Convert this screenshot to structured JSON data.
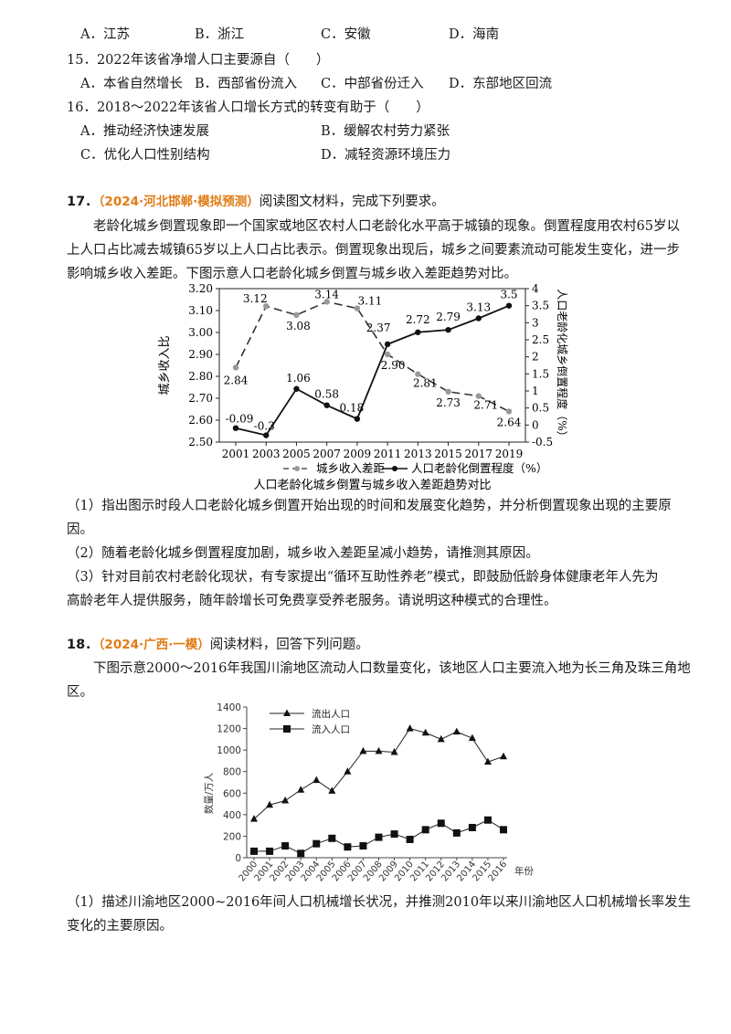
{
  "q14": {
    "options": [
      "A．江苏",
      "B．浙江",
      "C．安徽",
      "D．海南"
    ]
  },
  "q15": {
    "stem": "15．2022年该省净增人口主要源自（　　）",
    "options": [
      "A．本省自然增长",
      "B．西部省份流入",
      "C．中部省份迁入",
      "D．东部地区回流"
    ]
  },
  "q16": {
    "stem": "16．2018～2022年该省人口增长方式的转变有助于（　　）",
    "options": [
      "A．推动经济快速发展",
      "B．缓解农村劳力紧张",
      "C．优化人口性别结构",
      "D．减轻资源环境压力"
    ]
  },
  "q17": {
    "number": "17．",
    "source": "（2024·河北邯郸·模拟预测）",
    "instruction": "阅读图文材料，完成下列要求。",
    "para1": "老龄化城乡倒置现象即一个国家或地区农村人口老龄化水平高于城镇的现象。倒置程度用农村65岁以",
    "para2": "上人口占比减去城镇65岁以上人口占比表示。倒置现象出现后，城乡之间要素流动可能发生变化，进一步",
    "para3": "影响城乡收入差距。下图示意人口老龄化城乡倒置与城乡收入差距趋势对比。",
    "sub1a": "（1）指出图示时段人口老龄化城乡倒置开始出现的时间和发展变化趋势，并分析倒置现象出现的主要原",
    "sub1b": "因。",
    "sub2": "（2）随着老龄化城乡倒置程度加剧，城乡收入差距呈减小趋势，请推测其原因。",
    "sub3a": "（3）针对目前农村老龄化现状，有专家提出“循环互助性养老”模式，即鼓励低龄身体健康老年人先为",
    "sub3b": "高龄老年人提供服务，随年龄增长可免费享受养老服务。请说明这种模式的合理性。"
  },
  "q18": {
    "number": "18．",
    "source": "（2024·广西·一模）",
    "instruction": "阅读材料，回答下列问题。",
    "para1": "下图示意2000～2016年我国川渝地区流动人口数量变化，该地区人口主要流入地为长三角及珠三角地",
    "para2": "区。",
    "sub1a": "（1）描述川渝地区2000~2016年间人口机械增长状况，并推测2010年以来川渝地区人口机械增长率发生",
    "sub1b": "变化的主要原因。"
  },
  "chart_data": [
    {
      "type": "line",
      "title": "人口老龄化城乡倒置与城乡收入差距趋势对比",
      "x": [
        "2001",
        "2003",
        "2005",
        "2007",
        "2009",
        "2011",
        "2013",
        "2015",
        "2017",
        "2019"
      ],
      "ylabel": "城乡收入比",
      "y2label": "人口老龄化城乡倒置程度（%）",
      "ylim": [
        2.5,
        3.2
      ],
      "yticks": [
        "2.50",
        "2.60",
        "2.70",
        "2.80",
        "2.90",
        "3.00",
        "3.10",
        "3.20"
      ],
      "y2lim": [
        -0.5,
        4
      ],
      "y2ticks": [
        "-0.5",
        "0",
        "0.5",
        "1",
        "1.5",
        "2",
        "2.5",
        "3",
        "3.5",
        "4"
      ],
      "series": [
        {
          "name": "城乡收入差距",
          "axis": "left",
          "style": "dashed",
          "color": "#888888",
          "values": [
            2.84,
            3.12,
            3.08,
            3.14,
            3.11,
            2.9,
            2.81,
            2.73,
            2.71,
            2.64
          ],
          "labels": [
            "2.84",
            "3.12",
            "3.08",
            "3.14",
            "3.11",
            "2.90",
            "2.81",
            "2.73",
            "2.71",
            "2.64"
          ]
        },
        {
          "name": "人口老龄化倒置程度（%）",
          "axis": "right",
          "style": "solid",
          "color": "#111111",
          "values": [
            -0.09,
            -0.3,
            1.06,
            0.58,
            0.18,
            2.37,
            2.72,
            2.79,
            3.13,
            3.5
          ],
          "labels": [
            "-0.09",
            "-0.3",
            "1.06",
            "0.58",
            "0.18",
            "2.37",
            "2.72",
            "2.79",
            "3.13",
            "3.5"
          ]
        }
      ],
      "legend": "bottom"
    },
    {
      "type": "line",
      "x": [
        "2000",
        "2001",
        "2002",
        "2003",
        "2004",
        "2005",
        "2006",
        "2007",
        "2008",
        "2009",
        "2010",
        "2011",
        "2012",
        "2013",
        "2014",
        "2015",
        "2016"
      ],
      "xlabel": "年份",
      "ylabel": "数量/万人",
      "ylim": [
        0,
        1400
      ],
      "yticks": [
        "0",
        "200",
        "400",
        "600",
        "800",
        "1000",
        "1200",
        "1400"
      ],
      "series": [
        {
          "name": "流出人口",
          "marker": "triangle",
          "values": [
            360,
            490,
            530,
            630,
            720,
            620,
            800,
            990,
            990,
            980,
            1200,
            1160,
            1100,
            1170,
            1110,
            890,
            940
          ]
        },
        {
          "name": "流入人口",
          "marker": "square",
          "values": [
            60,
            60,
            110,
            40,
            130,
            180,
            100,
            110,
            190,
            220,
            170,
            260,
            320,
            230,
            280,
            350,
            260
          ]
        }
      ],
      "legend": "top-left"
    }
  ]
}
